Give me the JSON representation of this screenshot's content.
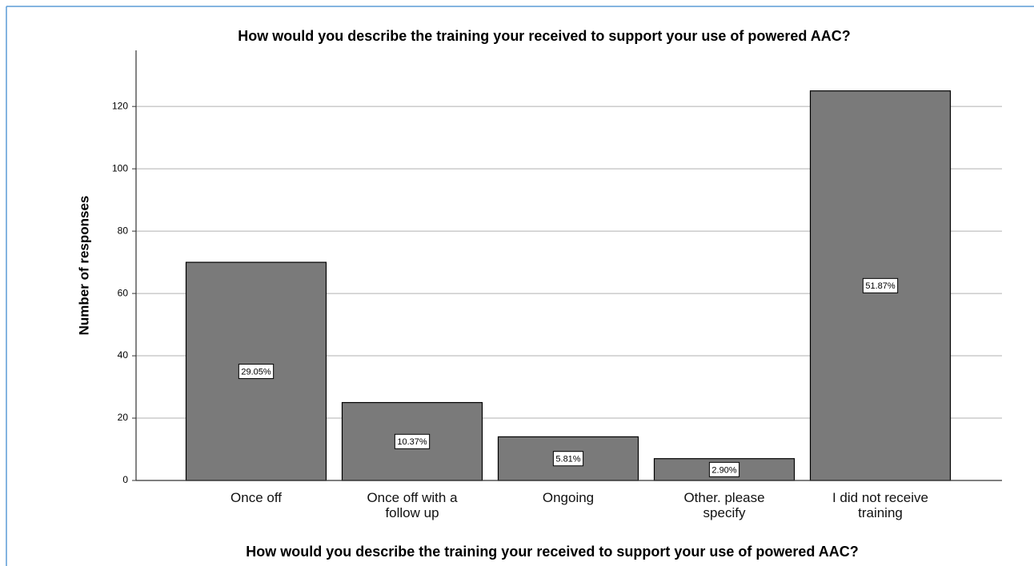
{
  "chart_data": {
    "type": "bar",
    "title": "How would you describe the training your received to support your use of powered AAC?",
    "x_label": "How would you describe the training your received  to support your use of powered AAC?",
    "y_label": "Number of responses",
    "categories": [
      "Once off",
      "Once off with a follow up",
      "Ongoing",
      "Other. please specify",
      "I did not receive training"
    ],
    "values": [
      70,
      25,
      14,
      7,
      125
    ],
    "data_labels": [
      "29.05%",
      "10.37%",
      "5.81%",
      "2.90%",
      "51.87%"
    ],
    "color": "#7a7a7a",
    "ylim": [
      0,
      138
    ],
    "yticks": [
      0,
      20,
      40,
      60,
      80,
      100,
      120
    ],
    "grid": true
  }
}
